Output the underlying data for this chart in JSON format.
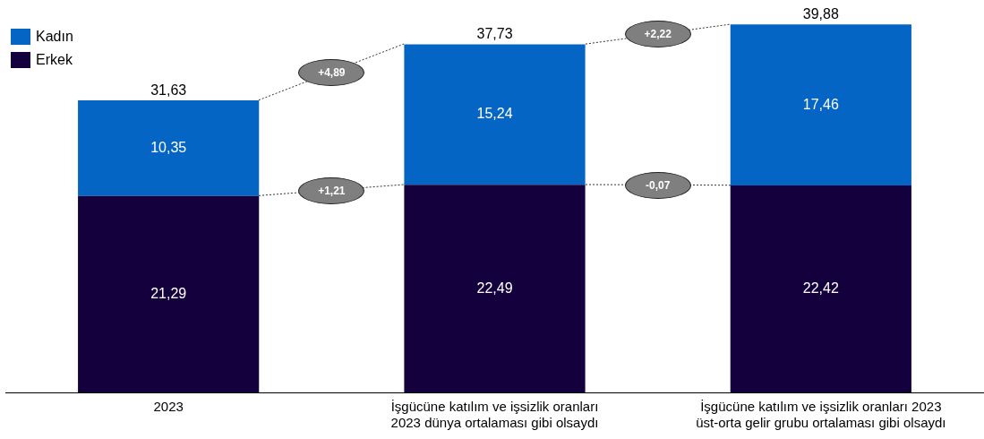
{
  "chart_data": {
    "type": "bar",
    "stacked": true,
    "categories": [
      "2023",
      "İşgücüne katılım ve işsizlik oranları\n2023 dünya ortalaması gibi olsaydı",
      "İşgücüne katılım ve işsizlik oranları 2023\nüst-orta gelir grubu ortalaması gibi olsaydı"
    ],
    "series": [
      {
        "name": "Erkek",
        "color": "#14003c",
        "values": [
          21.29,
          22.49,
          22.42
        ],
        "value_labels": [
          "21,29",
          "22,49",
          "22,42"
        ]
      },
      {
        "name": "Kadın",
        "color": "#0565c4",
        "values": [
          10.35,
          15.24,
          17.46
        ],
        "value_labels": [
          "10,35",
          "15,24",
          "17,46"
        ]
      }
    ],
    "totals": [
      "31,63",
      "37,73",
      "39,88"
    ],
    "annotations": [
      "+4,89",
      "+1,21",
      "+2,22",
      "-0,07"
    ],
    "tick_labels": "x",
    "grid": false,
    "legend": "top left"
  }
}
